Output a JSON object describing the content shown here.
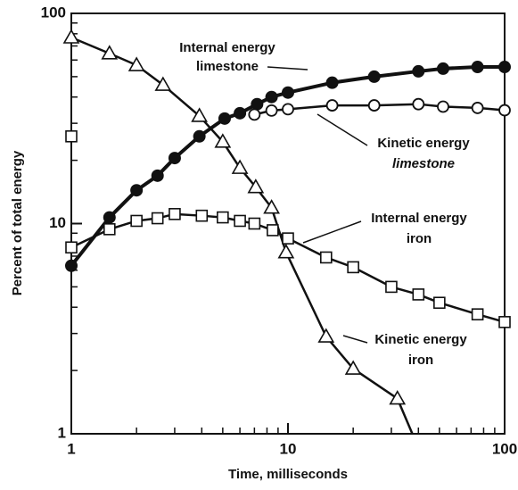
{
  "chart_data": {
    "type": "line",
    "xlabel": "Time, milliseconds",
    "ylabel": "Percent of total energy",
    "xscale": "log",
    "yscale": "log",
    "xlim": [
      1,
      100
    ],
    "ylim": [
      1,
      100
    ],
    "xticks": [
      1,
      10,
      100
    ],
    "yticks": [
      1,
      10,
      100
    ],
    "xminorticks": [
      2,
      3,
      4,
      5,
      6,
      7,
      8,
      9,
      20,
      30,
      40,
      50,
      60,
      70,
      80,
      90
    ],
    "yminorticks": [
      2,
      3,
      4,
      5,
      6,
      7,
      8,
      9,
      20,
      30,
      40,
      50,
      60,
      70,
      80,
      90
    ],
    "series": [
      {
        "marker": "filled-circle",
        "color": "#111111",
        "x": [
          1,
          1.5,
          2,
          2.5,
          3,
          3.9,
          5.1,
          6,
          7.2,
          8.4,
          10,
          16,
          25,
          40,
          52,
          75,
          100
        ],
        "values": [
          6.3,
          10.7,
          14.4,
          16.9,
          20.5,
          26,
          31.6,
          33.5,
          37,
          40,
          42,
          46.8,
          50,
          53,
          54.6,
          55.6,
          55.6
        ]
      },
      {
        "marker": "open-circle",
        "color": "#111111",
        "x": [
          7,
          8.4,
          10,
          16,
          25,
          40,
          52,
          75,
          100
        ],
        "values": [
          33,
          34.5,
          35,
          36.5,
          36.5,
          37,
          36,
          35.5,
          34.6
        ]
      },
      {
        "marker": "square",
        "color": "#111111",
        "x": [
          1,
          1,
          1,
          1.5,
          2,
          2.5,
          3,
          4,
          5,
          6,
          7,
          8.5,
          10,
          15,
          20,
          30,
          40,
          50,
          75,
          100
        ],
        "values": [
          26,
          null,
          7.7,
          9.4,
          10.3,
          10.6,
          11.1,
          10.9,
          10.7,
          10.3,
          10,
          9.3,
          8.5,
          6.9,
          6.2,
          5,
          4.6,
          4.2,
          3.7,
          3.4
        ]
      },
      {
        "marker": "triangle",
        "color": "#111111",
        "x": [
          1,
          1.5,
          2,
          2.65,
          3.9,
          5,
          6,
          7.1,
          8.4,
          9.8,
          15,
          20,
          32
        ],
        "values": [
          76.8,
          64.5,
          56.7,
          45.7,
          32.5,
          24.5,
          18.4,
          14.9,
          11.9,
          7.3,
          2.9,
          2.04,
          1.47
        ],
        "line_x": [
          1,
          1.5,
          2,
          2.65,
          3.9,
          5,
          6,
          7.1,
          8.4,
          9.8,
          15,
          20,
          32,
          37.5
        ],
        "line_values": [
          76.8,
          64.5,
          56.7,
          45.7,
          32.5,
          24.5,
          18.4,
          14.9,
          11.9,
          7.3,
          2.9,
          2.04,
          1.47,
          1
        ]
      }
    ],
    "annotations": [
      {
        "lines": [
          "Internal energy",
          "limestone"
        ]
      },
      {
        "lines": [
          "Kinetic energy",
          "limestone"
        ]
      },
      {
        "lines": [
          "Internal energy",
          "iron"
        ]
      },
      {
        "lines": [
          "Kinetic energy",
          "iron"
        ]
      }
    ]
  }
}
